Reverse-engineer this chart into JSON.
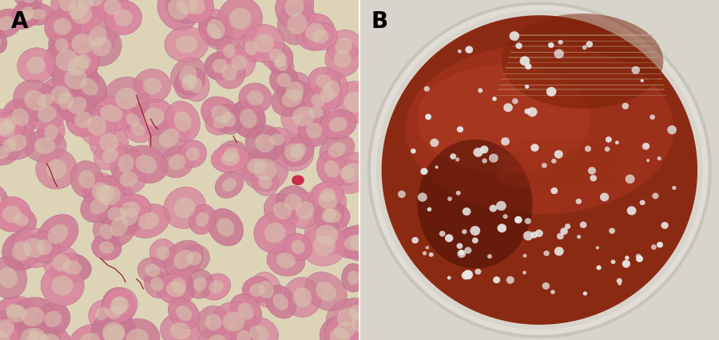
{
  "figsize": [
    9.0,
    4.26
  ],
  "dpi": 100,
  "panel_A_label": "A",
  "panel_B_label": "B",
  "label_fontsize": 20,
  "label_fontweight": "bold",
  "label_color": "#000000",
  "bg_color_A": "#ddd4b8",
  "rbc_color_main": "#c8849a",
  "rbc_color_edge": "#b87090",
  "rbc_pale_center": "#d8c8b0",
  "bacteria_color": "#8B1020",
  "bg_color_B_outer": "#d8d0c4",
  "agar_base_color": "#8B2A10",
  "agar_mid_color": "#A03515",
  "agar_light_color": "#B84020",
  "plate_rim_color": "#e8e0d0",
  "colony_color": "#e8e8e8",
  "num_rbcs": 200,
  "num_colonies": 120,
  "seed_A": 42,
  "seed_B": 77
}
